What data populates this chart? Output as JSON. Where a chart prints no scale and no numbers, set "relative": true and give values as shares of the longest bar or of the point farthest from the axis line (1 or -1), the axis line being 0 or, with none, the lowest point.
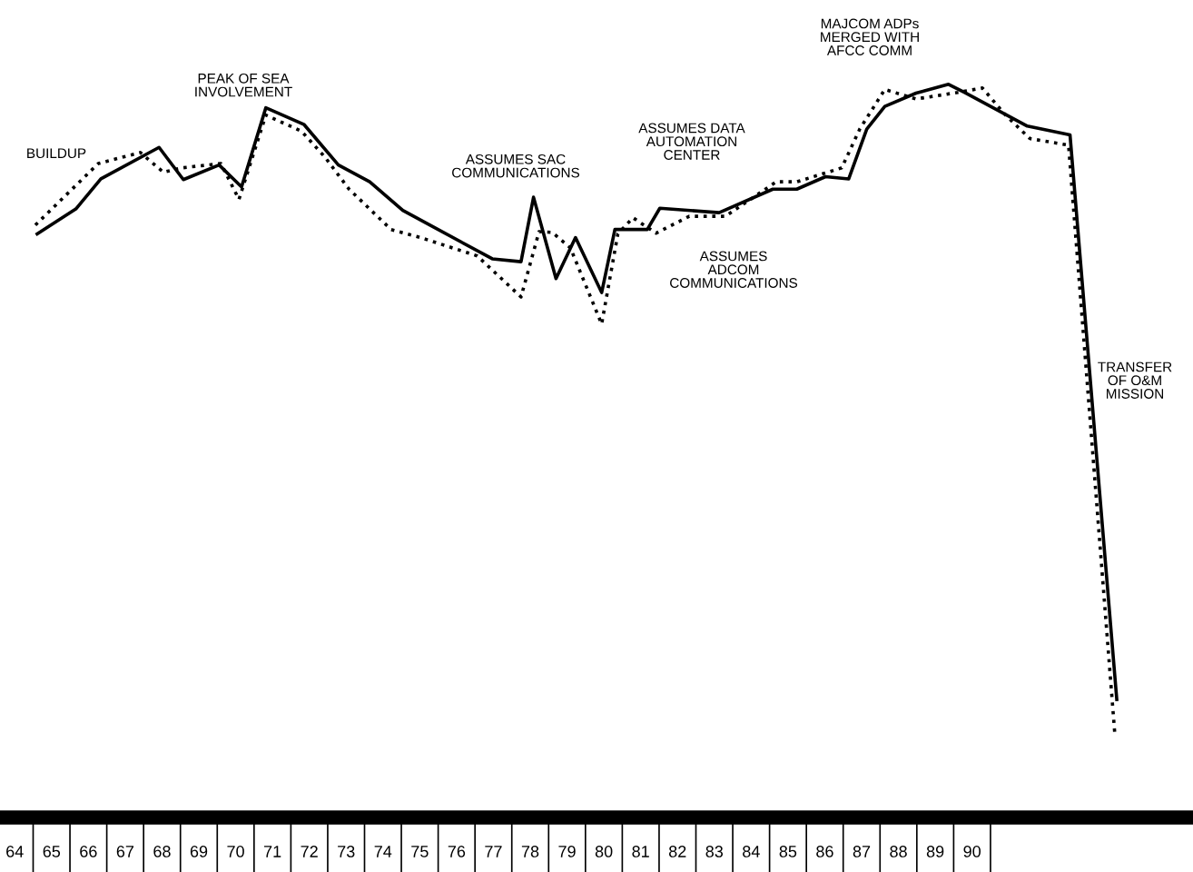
{
  "chart_data": {
    "type": "line",
    "relative": true,
    "grid": false,
    "marker": "none",
    "xlim": [
      63.6,
      96.0
    ],
    "xticks": [
      64,
      65,
      66,
      67,
      68,
      69,
      70,
      71,
      72,
      73,
      74,
      75,
      76,
      77,
      78,
      79,
      80,
      81,
      82,
      83,
      84,
      85,
      86,
      87,
      88,
      89,
      90
    ],
    "series": [
      {
        "color": "#000000",
        "line_style": "solid",
        "x": [
          64.61,
          65.66,
          66.34,
          67.92,
          68.58,
          69.55,
          70.16,
          70.82,
          71.86,
          72.79,
          73.64,
          74.54,
          76.97,
          77.75,
          78.09,
          78.7,
          79.23,
          79.94,
          80.3,
          81.18,
          81.52,
          83.13,
          84.59,
          85.24,
          86.02,
          86.65,
          87.14,
          87.63,
          88.48,
          89.36,
          89.79,
          91.5,
          92.66,
          93.93
        ],
        "values": [
          0.796,
          0.83,
          0.871,
          0.914,
          0.87,
          0.89,
          0.86,
          0.968,
          0.945,
          0.89,
          0.867,
          0.828,
          0.762,
          0.758,
          0.846,
          0.735,
          0.791,
          0.716,
          0.802,
          0.802,
          0.831,
          0.825,
          0.857,
          0.857,
          0.874,
          0.871,
          0.939,
          0.97,
          0.988,
          1.0,
          0.989,
          0.943,
          0.931,
          0.161
        ]
      },
      {
        "color": "#000000",
        "line_style": "dotted",
        "x": [
          64.56,
          66.27,
          67.41,
          68.04,
          68.53,
          69.6,
          70.09,
          70.82,
          71.79,
          72.42,
          73.08,
          74.22,
          75.02,
          76.56,
          77.75,
          78.24,
          78.6,
          79.09,
          79.94,
          80.38,
          80.79,
          81.42,
          82.32,
          83.3,
          84.68,
          85.24,
          86.46,
          86.95,
          87.63,
          88.48,
          89.62,
          90.28,
          90.91,
          91.57,
          92.62,
          93.88
        ],
        "values": [
          0.808,
          0.892,
          0.907,
          0.88,
          0.886,
          0.892,
          0.843,
          0.958,
          0.936,
          0.901,
          0.857,
          0.802,
          0.791,
          0.766,
          0.71,
          0.799,
          0.798,
          0.777,
          0.673,
          0.796,
          0.818,
          0.797,
          0.82,
          0.82,
          0.867,
          0.867,
          0.886,
          0.939,
          0.993,
          0.98,
          0.989,
          0.995,
          0.958,
          0.926,
          0.917,
          0.112
        ]
      }
    ],
    "annotations": [
      "BUILDUP",
      "PEAK OF SEA\nINVOLVEMENT",
      "ASSUMES SAC\nCOMMUNICATIONS",
      "ASSUMES DATA\nAUTOMATION\nCENTER",
      "ASSUMES\nADCOM\nCOMMUNICATIONS",
      "MAJCOM ADPs\nMERGED WITH\nAFCC COMM",
      "TRANSFER\nOF O&M\nMISSION"
    ]
  }
}
